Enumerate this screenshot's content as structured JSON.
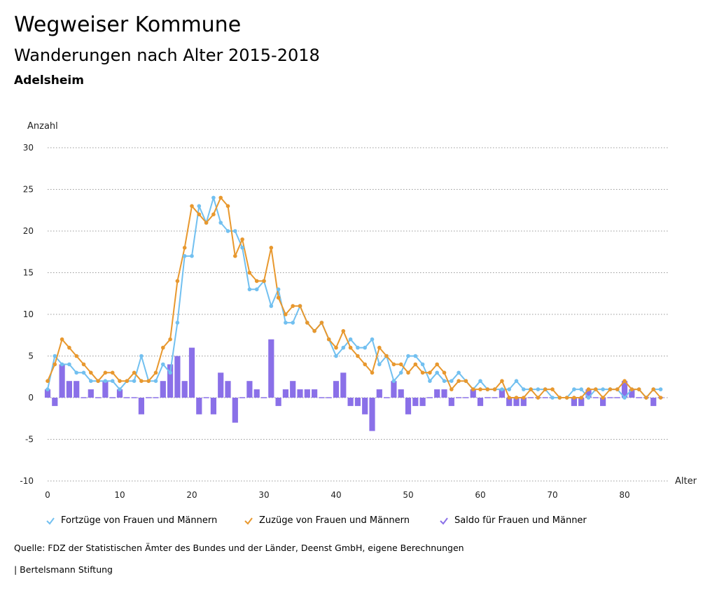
{
  "header": {
    "title": "Wegweiser Kommune",
    "subtitle": "Wanderungen nach Alter 2015-2018",
    "region": "Adelsheim"
  },
  "footer": {
    "source": "Quelle: FDZ der Statistischen Ämter des Bundes und der Länder, Deenst GmbH, eigene Berechnungen",
    "brand": "| Bertelsmann Stiftung"
  },
  "colors": {
    "fortzuege": "#72c0f0",
    "zuzuege": "#e8982e",
    "saldo": "#8a70e8",
    "grid": "#9a9a9a"
  },
  "chart_data": {
    "type": "line",
    "title": "Wanderungen nach Alter 2015-2018",
    "xlabel": "Alter",
    "ylabel": "Anzahl",
    "xlim": [
      0,
      85
    ],
    "ylim": [
      -10,
      30
    ],
    "x_ticks": [
      0,
      10,
      20,
      30,
      40,
      50,
      60,
      70,
      80
    ],
    "y_ticks": [
      -10,
      -5,
      0,
      5,
      10,
      15,
      20,
      25,
      30
    ],
    "grid": true,
    "legend_position": "bottom",
    "x": [
      0,
      1,
      2,
      3,
      4,
      5,
      6,
      7,
      8,
      9,
      10,
      11,
      12,
      13,
      14,
      15,
      16,
      17,
      18,
      19,
      20,
      21,
      22,
      23,
      24,
      25,
      26,
      27,
      28,
      29,
      30,
      31,
      32,
      33,
      34,
      35,
      36,
      37,
      38,
      39,
      40,
      41,
      42,
      43,
      44,
      45,
      46,
      47,
      48,
      49,
      50,
      51,
      52,
      53,
      54,
      55,
      56,
      57,
      58,
      59,
      60,
      61,
      62,
      63,
      64,
      65,
      66,
      67,
      68,
      69,
      70,
      71,
      72,
      73,
      74,
      75,
      76,
      77,
      78,
      79,
      80,
      81,
      82,
      83,
      84,
      85
    ],
    "series": [
      {
        "name": "Fortzüge von Frauen und Männern",
        "type": "line",
        "values": [
          1,
          5,
          4,
          4,
          3,
          3,
          2,
          2,
          2,
          2,
          1,
          2,
          2,
          5,
          2,
          2,
          4,
          3,
          9,
          17,
          17,
          23,
          21,
          24,
          21,
          20,
          20,
          18,
          13,
          13,
          14,
          11,
          13,
          9,
          9,
          11,
          9,
          8,
          9,
          7,
          5,
          6,
          7,
          6,
          6,
          7,
          4,
          5,
          2,
          3,
          5,
          5,
          4,
          2,
          3,
          2,
          2,
          3,
          2,
          1,
          2,
          1,
          1,
          1,
          1,
          2,
          1,
          1,
          1,
          1,
          0,
          0,
          0,
          1,
          1,
          0,
          1,
          1,
          1,
          1,
          0,
          1,
          1,
          0,
          1,
          1
        ]
      },
      {
        "name": "Zuzüge von Frauen und Männern",
        "type": "line",
        "values": [
          2,
          4,
          7,
          6,
          5,
          4,
          3,
          2,
          3,
          3,
          2,
          2,
          3,
          2,
          2,
          3,
          6,
          7,
          14,
          18,
          23,
          22,
          21,
          22,
          24,
          23,
          17,
          19,
          15,
          14,
          14,
          18,
          12,
          10,
          11,
          11,
          9,
          8,
          9,
          7,
          6,
          8,
          6,
          5,
          4,
          3,
          6,
          5,
          4,
          4,
          3,
          4,
          3,
          3,
          4,
          3,
          1,
          2,
          2,
          1,
          1,
          1,
          1,
          2,
          0,
          0,
          0,
          1,
          0,
          1,
          1,
          0,
          0,
          0,
          0,
          1,
          1,
          0,
          1,
          1,
          2,
          1,
          1,
          0,
          1,
          0
        ]
      },
      {
        "name": "Saldo für Frauen und Männer",
        "type": "bar",
        "values": [
          1,
          -1,
          4,
          2,
          2,
          0,
          1,
          0,
          2,
          0,
          1,
          0,
          0,
          -2,
          0,
          0,
          2,
          4,
          5,
          2,
          6,
          -2,
          0,
          -2,
          3,
          2,
          -3,
          0,
          2,
          1,
          0,
          7,
          -1,
          1,
          2,
          1,
          1,
          1,
          0,
          0,
          2,
          3,
          -1,
          -1,
          -2,
          -4,
          1,
          0,
          2,
          1,
          -2,
          -1,
          -1,
          0,
          1,
          1,
          -1,
          0,
          0,
          1,
          -1,
          0,
          0,
          1,
          -1,
          -1,
          -1,
          0,
          0,
          0,
          0,
          0,
          0,
          -1,
          -1,
          1,
          0,
          -1,
          0,
          0,
          2,
          1,
          0,
          0,
          -1,
          0
        ]
      }
    ]
  }
}
